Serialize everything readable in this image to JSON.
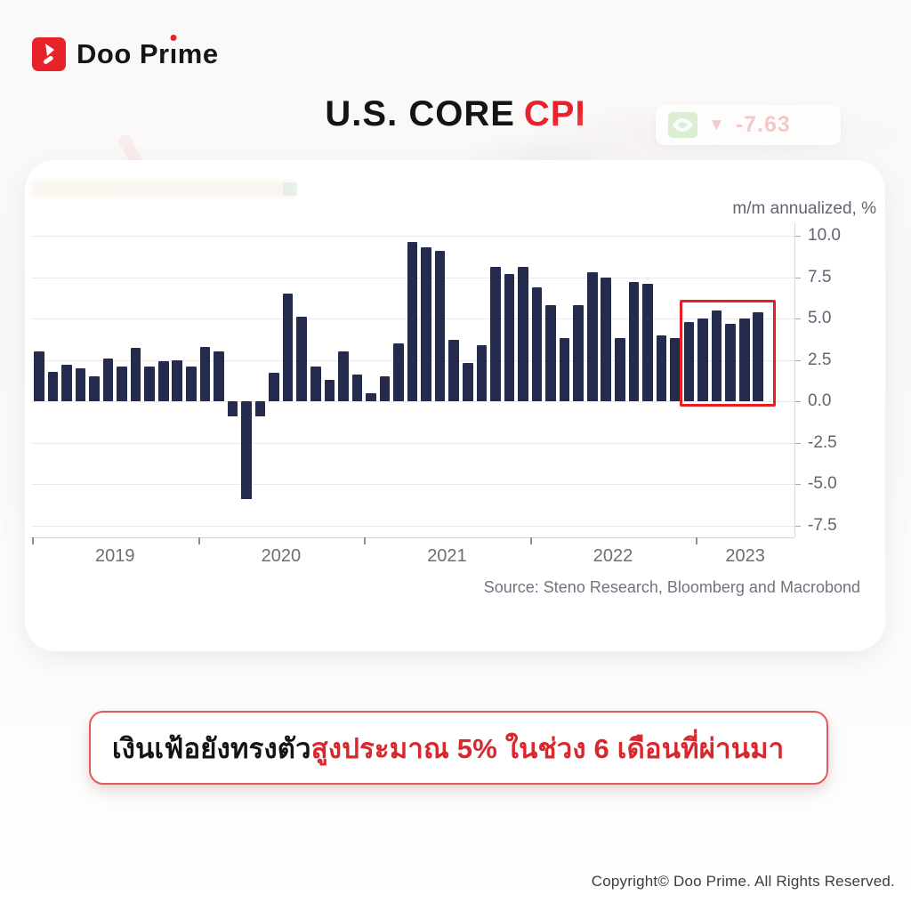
{
  "brand": {
    "name": "Doo Prime",
    "text_before_i": "Doo Pr",
    "dotless_i": "ı",
    "text_after_i": "me",
    "logo_icon": "doo-prime-arrow-icon",
    "brand_red": "#e8222a"
  },
  "title": {
    "prefix": "U.S. CORE",
    "highlight": "CPI"
  },
  "watermark_badge": {
    "icon": "nvidia-logo-icon",
    "arrow_icon": "triangle-down-icon",
    "arrow": "▼",
    "value": "-7.63"
  },
  "chart_data": {
    "type": "bar",
    "title": "U.S. Core CPI",
    "ylabel": "m/m annualized, %",
    "start_month": "2019-01",
    "x_year_labels": [
      "2019",
      "2020",
      "2021",
      "2022",
      "2023"
    ],
    "y_tick_labels": [
      "10.0",
      "7.5",
      "5.0",
      "2.5",
      "0.0",
      "-2.5",
      "-5.0",
      "-7.5"
    ],
    "y_ticks": [
      10.0,
      7.5,
      5.0,
      2.5,
      0.0,
      -2.5,
      -5.0,
      -7.5
    ],
    "ylim": [
      -8.8,
      11.0
    ],
    "grid": true,
    "legend": "none",
    "bar_color": "#252b4d",
    "values": [
      3.0,
      1.8,
      2.2,
      2.0,
      1.5,
      2.6,
      2.1,
      3.2,
      2.1,
      2.4,
      2.5,
      2.1,
      3.3,
      3.0,
      -0.9,
      -5.9,
      -0.9,
      1.7,
      6.5,
      5.1,
      2.1,
      1.3,
      3.0,
      1.6,
      0.5,
      1.5,
      3.5,
      9.6,
      9.3,
      9.1,
      3.7,
      2.3,
      3.4,
      8.1,
      7.7,
      8.1,
      6.9,
      5.8,
      3.8,
      5.8,
      7.8,
      7.5,
      3.8,
      7.2,
      7.1,
      4.0,
      3.8,
      4.8,
      5.0,
      5.5,
      4.7,
      5.0,
      5.4
    ],
    "highlight": {
      "start_index": 47,
      "end_index": 52,
      "note": "last 6 months ~5%",
      "color": "#ea1c24"
    },
    "source": "Source: Steno Research, Bloomberg and Macrobond"
  },
  "callout": {
    "text_black": "เงินเฟ้อยังทรงตัว",
    "text_red": "สูงประมาณ 5% ในช่วง 6 เดือนที่ผ่านมา"
  },
  "footer": {
    "copyright": "Copyright© Doo Prime. All Rights Reserved."
  },
  "colors": {
    "bar": "#252b4d",
    "accent_red": "#e8222a",
    "highlight_box": "#ea1c24",
    "axis_text": "#5f6470",
    "gridline": "#ebebee",
    "callout_border": "#e05b5b",
    "callout_red_text": "#d7282d"
  }
}
